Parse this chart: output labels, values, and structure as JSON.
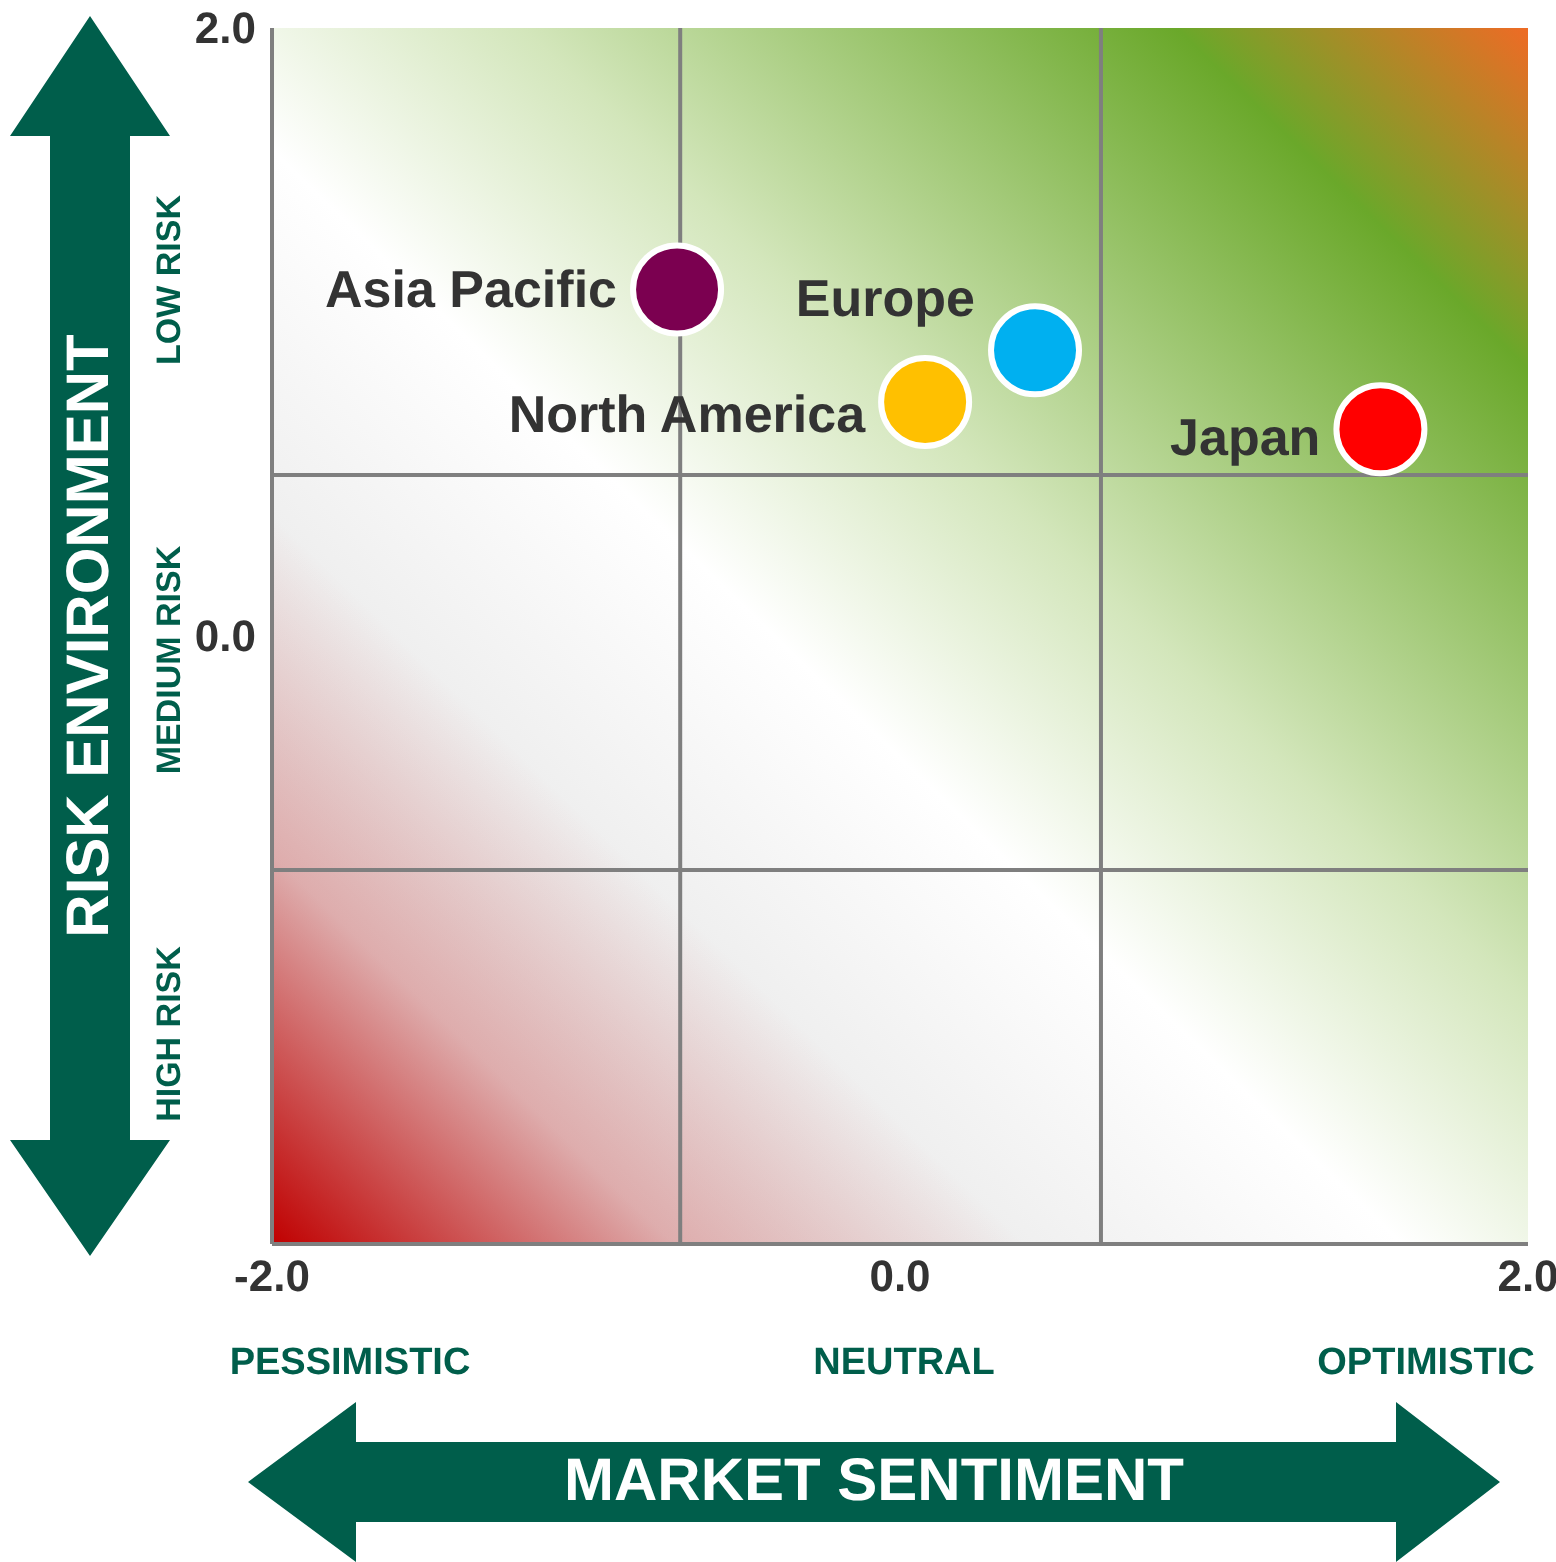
{
  "chart_data": {
    "type": "scatter",
    "xlabel": "MARKET SENTIMENT",
    "ylabel": "RISK ENVIRONMENT",
    "xlim": [
      -2,
      2
    ],
    "ylim": [
      -2,
      2
    ],
    "xticks": [
      {
        "value": -2,
        "label": "-2.0"
      },
      {
        "value": 0,
        "label": "0.0"
      },
      {
        "value": 2,
        "label": "2.0"
      }
    ],
    "yticks": [
      {
        "value": 0,
        "label": "0.0"
      },
      {
        "value": 2,
        "label": "2.0"
      }
    ],
    "marker": "circle",
    "grid": false,
    "legend": false,
    "ref_lines": [
      {
        "axis": "x",
        "value": -0.7,
        "color": "#7f7f7f"
      },
      {
        "axis": "x",
        "value": 0.64,
        "color": "#7f7f7f"
      },
      {
        "axis": "y",
        "value": 0.53,
        "color": "#7f7f7f"
      },
      {
        "axis": "y",
        "value": -0.77,
        "color": "#7f7f7f"
      }
    ],
    "annotations": [
      "LOW RISK",
      "MEDIUM RISK",
      "HIGH RISK",
      "PESSIMISTIC",
      "NEUTRAL",
      "OPTIMISTIC"
    ],
    "series": [
      {
        "name": "Asia Pacific",
        "color": "#7b0050",
        "x": [
          -0.71
        ],
        "values": [
          1.14
        ]
      },
      {
        "name": "Europe",
        "color": "#00b0f0",
        "x": [
          0.43
        ],
        "values": [
          0.94
        ]
      },
      {
        "name": "North America",
        "color": "#ffc000",
        "x": [
          0.08
        ],
        "values": [
          0.77
        ]
      },
      {
        "name": "Japan",
        "color": "#ff0000",
        "x": [
          1.53
        ],
        "values": [
          0.68
        ]
      }
    ]
  }
}
